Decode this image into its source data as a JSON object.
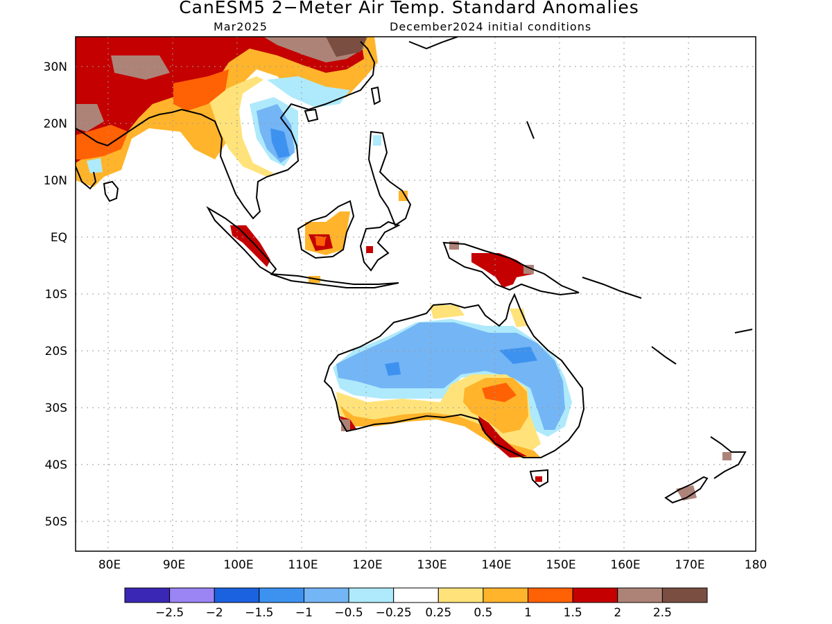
{
  "title": "CanESM5 2−Meter Air Temp. Standard Anomalies",
  "valid_month": "Mar2025",
  "init_label": "December2024 initial conditions",
  "lat_labels": [
    "30N",
    "20N",
    "10N",
    "EQ",
    "10S",
    "20S",
    "30S",
    "40S",
    "50S"
  ],
  "lon_labels": [
    "80E",
    "90E",
    "100E",
    "110E",
    "120E",
    "130E",
    "140E",
    "150E",
    "160E",
    "170E",
    "180"
  ],
  "colorbar": {
    "colors": [
      "#3b27b5",
      "#9b85f4",
      "#1b62e1",
      "#3d92f0",
      "#74b5f5",
      "#aeeafb",
      "#ffffff",
      "#ffe37a",
      "#ffb42b",
      "#ff6105",
      "#c40000",
      "#ad8378",
      "#7a4e41"
    ],
    "labels": [
      "−2.5",
      "−2",
      "−1.5",
      "−1",
      "−0.5",
      "−0.25",
      "0.25",
      "0.5",
      "1",
      "1.5",
      "2",
      "2.5"
    ]
  }
}
